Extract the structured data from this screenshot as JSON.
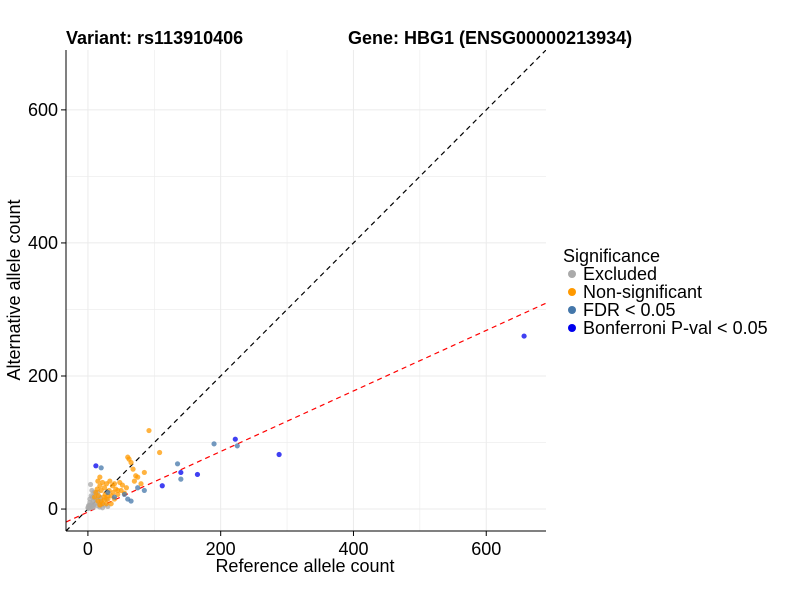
{
  "chart_data": {
    "type": "scatter",
    "title_left": "Variant: rs113910406",
    "title_right": "Gene: HBG1 (ENSG00000213934)",
    "xlabel": "Reference allele count",
    "ylabel": "Alternative allele count",
    "xlim": [
      -33,
      690
    ],
    "ylim": [
      -33,
      690
    ],
    "xticks": [
      "0",
      "200",
      "400",
      "600"
    ],
    "yticks": [
      "0",
      "200",
      "400",
      "600"
    ],
    "grid": true,
    "legend_placement": "right",
    "legend_title": "Significance",
    "reference_lines": [
      {
        "kind": "identity",
        "slope": 1,
        "intercept": 0,
        "color": "#000000",
        "dash": true
      },
      {
        "kind": "fit",
        "slope": 0.455,
        "intercept": -4.5,
        "color": "#ff0000",
        "dash": true
      }
    ],
    "series": [
      {
        "name": "Excluded",
        "color": "#aaaaaa",
        "points": [
          [
            1,
            1
          ],
          [
            2,
            3
          ],
          [
            3,
            2
          ],
          [
            4,
            5
          ],
          [
            5,
            3
          ],
          [
            6,
            8
          ],
          [
            7,
            4
          ],
          [
            8,
            12
          ],
          [
            9,
            6
          ],
          [
            5,
            20
          ],
          [
            6,
            28
          ],
          [
            4,
            37
          ],
          [
            10,
            15
          ],
          [
            12,
            9
          ],
          [
            14,
            5
          ],
          [
            16,
            18
          ],
          [
            18,
            3
          ],
          [
            20,
            10
          ],
          [
            22,
            2
          ],
          [
            25,
            6
          ],
          [
            28,
            15
          ],
          [
            30,
            4
          ],
          [
            3,
            10
          ],
          [
            2,
            6
          ],
          [
            8,
            2
          ],
          [
            11,
            22
          ],
          [
            13,
            14
          ],
          [
            15,
            25
          ],
          [
            17,
            8
          ],
          [
            19,
            16
          ],
          [
            0,
            2
          ],
          [
            1,
            5
          ],
          [
            3,
            15
          ],
          [
            7,
            18
          ],
          [
            9,
            25
          ]
        ]
      },
      {
        "name": "Non-significant",
        "color": "#ff9900",
        "points": [
          [
            10,
            18
          ],
          [
            12,
            25
          ],
          [
            14,
            30
          ],
          [
            15,
            12
          ],
          [
            16,
            20
          ],
          [
            18,
            35
          ],
          [
            20,
            28
          ],
          [
            22,
            40
          ],
          [
            24,
            18
          ],
          [
            25,
            32
          ],
          [
            26,
            22
          ],
          [
            28,
            38
          ],
          [
            30,
            15
          ],
          [
            32,
            28
          ],
          [
            33,
            42
          ],
          [
            35,
            20
          ],
          [
            37,
            35
          ],
          [
            38,
            25
          ],
          [
            40,
            38
          ],
          [
            42,
            30
          ],
          [
            45,
            22
          ],
          [
            48,
            40
          ],
          [
            50,
            28
          ],
          [
            52,
            36
          ],
          [
            55,
            24
          ],
          [
            58,
            32
          ],
          [
            60,
            78
          ],
          [
            62,
            75
          ],
          [
            65,
            70
          ],
          [
            68,
            60
          ],
          [
            70,
            42
          ],
          [
            72,
            50
          ],
          [
            75,
            48
          ],
          [
            80,
            38
          ],
          [
            85,
            55
          ],
          [
            92,
            118
          ],
          [
            108,
            85
          ],
          [
            18,
            6
          ],
          [
            20,
            12
          ],
          [
            22,
            8
          ],
          [
            25,
            14
          ],
          [
            28,
            8
          ],
          [
            30,
            20
          ],
          [
            35,
            8
          ],
          [
            40,
            15
          ],
          [
            45,
            28
          ],
          [
            18,
            48
          ],
          [
            15,
            42
          ]
        ]
      },
      {
        "name": "FDR < 0.05",
        "color": "#4477aa",
        "points": [
          [
            20,
            62
          ],
          [
            30,
            25
          ],
          [
            40,
            18
          ],
          [
            55,
            22
          ],
          [
            60,
            15
          ],
          [
            65,
            12
          ],
          [
            75,
            32
          ],
          [
            85,
            28
          ],
          [
            135,
            68
          ],
          [
            140,
            45
          ],
          [
            190,
            98
          ],
          [
            225,
            95
          ]
        ]
      },
      {
        "name": "Bonferroni P-val < 0.05",
        "color": "#0000ee",
        "points": [
          [
            12,
            65
          ],
          [
            112,
            35
          ],
          [
            140,
            55
          ],
          [
            165,
            52
          ],
          [
            222,
            105
          ],
          [
            288,
            82
          ],
          [
            657,
            260
          ]
        ]
      }
    ]
  }
}
